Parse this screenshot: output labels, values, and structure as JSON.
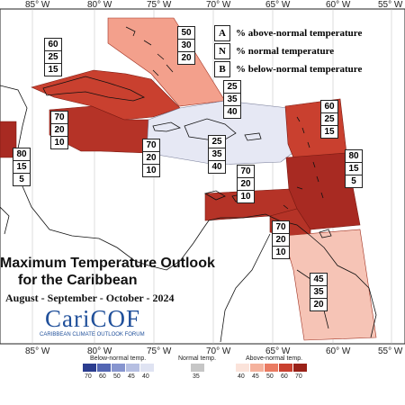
{
  "longitudes_top": [
    "85° W",
    "80° W",
    "75° W",
    "70° W",
    "65° W",
    "60° W",
    "55° W"
  ],
  "longitudes_bottom": [
    "85° W",
    "80° W",
    "75° W",
    "70° W",
    "65° W",
    "60° W",
    "55° W"
  ],
  "legend_key": [
    {
      "letter": "A",
      "text": "% above-normal temperature"
    },
    {
      "letter": "N",
      "text": "% normal temperature"
    },
    {
      "letter": "B",
      "text": "% below-normal temperature"
    }
  ],
  "regions": [
    {
      "name": "bahamas-north",
      "probs": [
        "50",
        "30",
        "20"
      ],
      "color": "#f3a08c"
    },
    {
      "name": "cuba-bahamas",
      "probs": [
        "60",
        "25",
        "15"
      ],
      "color": "#c9402f"
    },
    {
      "name": "belize",
      "probs": [
        "80",
        "15",
        "5"
      ],
      "color": "#a82a22"
    },
    {
      "name": "jamaica-cayman",
      "probs": [
        "70",
        "20",
        "10"
      ],
      "color": "#b53327"
    },
    {
      "name": "jamaica-south",
      "probs": [
        "70",
        "20",
        "10"
      ],
      "color": "#b53327"
    },
    {
      "name": "hispaniola-north",
      "probs": [
        "25",
        "35",
        "40"
      ],
      "color": "#e6e8f4"
    },
    {
      "name": "hispaniola-south",
      "probs": [
        "25",
        "35",
        "40"
      ],
      "color": "#e6e8f4"
    },
    {
      "name": "leeward-north",
      "probs": [
        "60",
        "25",
        "15"
      ],
      "color": "#c9402f"
    },
    {
      "name": "windward",
      "probs": [
        "80",
        "15",
        "5"
      ],
      "color": "#a82a22"
    },
    {
      "name": "abc-islands",
      "probs": [
        "70",
        "20",
        "10"
      ],
      "color": "#b53327"
    },
    {
      "name": "trinidad",
      "probs": [
        "70",
        "20",
        "10"
      ],
      "color": "#b53327"
    },
    {
      "name": "guianas",
      "probs": [
        "45",
        "35",
        "20"
      ],
      "color": "#f6c4b6"
    }
  ],
  "title": {
    "line1": "Maximum Temperature Outlook",
    "line2": "for the Caribbean",
    "period": "August - September - October - 2024"
  },
  "logo": {
    "text": "CariCOF",
    "subtitle": "CARIBBEAN CLIMATE OUTLOOK FORUM"
  },
  "colorbar": {
    "below_label": "Below-normal temp.",
    "normal_label": "Normal temp.",
    "above_label": "Above-normal temp.",
    "below_ticks": [
      "70",
      "60",
      "50",
      "45",
      "40"
    ],
    "normal_ticks": [
      "35"
    ],
    "above_ticks": [
      "40",
      "45",
      "50",
      "60",
      "70"
    ],
    "below_colors": [
      "#2b3d8f",
      "#5366b4",
      "#8795cf",
      "#b6bfe2",
      "#dfe3f2"
    ],
    "normal_color": "#c6c6c6",
    "above_colors": [
      "#fbe3da",
      "#f5b29d",
      "#ea7b62",
      "#c9402f",
      "#9a2118"
    ]
  }
}
